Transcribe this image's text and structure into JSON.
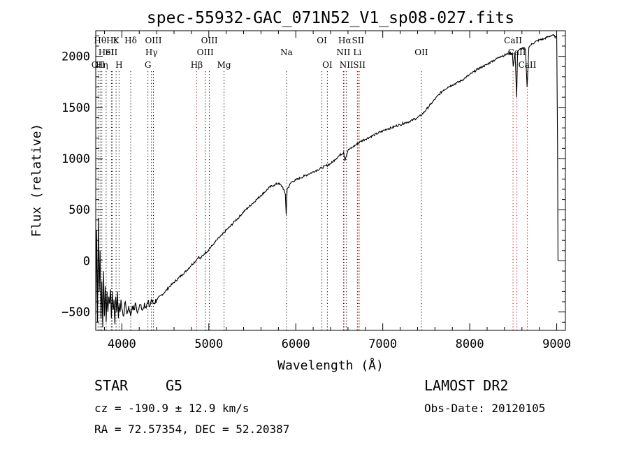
{
  "chart_data": {
    "type": "line",
    "title": "spec-55932-GAC_071N52_V1_sp08-027.fits",
    "xlabel": "Wavelength (Å)",
    "ylabel": "Flux (relative)",
    "xlim": [
      3700,
      9100
    ],
    "ylim": [
      -680,
      2250
    ],
    "x_ticks": [
      4000,
      5000,
      6000,
      7000,
      8000,
      9000
    ],
    "y_ticks": [
      -500,
      0,
      500,
      1000,
      1500,
      2000
    ],
    "grid": false,
    "series": [
      {
        "points": [
          [
            3700,
            -520
          ],
          [
            3710,
            300
          ],
          [
            3720,
            -600
          ],
          [
            3730,
            420
          ],
          [
            3740,
            -300
          ],
          [
            3750,
            100
          ],
          [
            3760,
            -560
          ],
          [
            3770,
            -200
          ],
          [
            3780,
            -650
          ],
          [
            3790,
            -100
          ],
          [
            3800,
            -540
          ],
          [
            3810,
            -250
          ],
          [
            3820,
            -600
          ],
          [
            3830,
            -300
          ],
          [
            3840,
            -500
          ],
          [
            3850,
            -350
          ],
          [
            3860,
            -420
          ],
          [
            3870,
            -280
          ],
          [
            3880,
            -560
          ],
          [
            3890,
            -300
          ],
          [
            3900,
            -480
          ],
          [
            3910,
            -380
          ],
          [
            3920,
            -620
          ],
          [
            3930,
            -350
          ],
          [
            3940,
            -500
          ],
          [
            3950,
            -300
          ],
          [
            3960,
            -560
          ],
          [
            3970,
            -420
          ],
          [
            3980,
            -500
          ],
          [
            3990,
            -380
          ],
          [
            4000,
            -470
          ],
          [
            4020,
            -540
          ],
          [
            4040,
            -400
          ],
          [
            4060,
            -520
          ],
          [
            4080,
            -440
          ],
          [
            4100,
            -540
          ],
          [
            4120,
            -440
          ],
          [
            4140,
            -480
          ],
          [
            4160,
            -420
          ],
          [
            4180,
            -510
          ],
          [
            4200,
            -450
          ],
          [
            4220,
            -430
          ],
          [
            4240,
            -480
          ],
          [
            4260,
            -410
          ],
          [
            4280,
            -460
          ],
          [
            4300,
            -400
          ],
          [
            4320,
            -450
          ],
          [
            4340,
            -380
          ],
          [
            4360,
            -420
          ],
          [
            4400,
            -380
          ],
          [
            4450,
            -340
          ],
          [
            4500,
            -300
          ],
          [
            4550,
            -250
          ],
          [
            4600,
            -210
          ],
          [
            4650,
            -170
          ],
          [
            4700,
            -130
          ],
          [
            4750,
            -90
          ],
          [
            4800,
            -40
          ],
          [
            4850,
            0
          ],
          [
            4880,
            40
          ],
          [
            4900,
            20
          ],
          [
            4950,
            70
          ],
          [
            5000,
            110
          ],
          [
            5050,
            160
          ],
          [
            5100,
            210
          ],
          [
            5150,
            250
          ],
          [
            5200,
            300
          ],
          [
            5250,
            340
          ],
          [
            5300,
            390
          ],
          [
            5350,
            430
          ],
          [
            5400,
            480
          ],
          [
            5450,
            520
          ],
          [
            5500,
            560
          ],
          [
            5550,
            600
          ],
          [
            5600,
            640
          ],
          [
            5650,
            680
          ],
          [
            5700,
            720
          ],
          [
            5750,
            740
          ],
          [
            5800,
            760
          ],
          [
            5850,
            720
          ],
          [
            5880,
            650
          ],
          [
            5890,
            450
          ],
          [
            5900,
            700
          ],
          [
            5950,
            770
          ],
          [
            6000,
            790
          ],
          [
            6050,
            810
          ],
          [
            6100,
            830
          ],
          [
            6150,
            850
          ],
          [
            6200,
            870
          ],
          [
            6250,
            890
          ],
          [
            6300,
            910
          ],
          [
            6350,
            930
          ],
          [
            6400,
            950
          ],
          [
            6450,
            990
          ],
          [
            6500,
            1030
          ],
          [
            6550,
            1060
          ],
          [
            6563,
            980
          ],
          [
            6600,
            1080
          ],
          [
            6650,
            1110
          ],
          [
            6700,
            1140
          ],
          [
            6750,
            1170
          ],
          [
            6800,
            1190
          ],
          [
            6850,
            1210
          ],
          [
            6900,
            1230
          ],
          [
            6950,
            1250
          ],
          [
            7000,
            1270
          ],
          [
            7050,
            1290
          ],
          [
            7100,
            1300
          ],
          [
            7150,
            1320
          ],
          [
            7200,
            1330
          ],
          [
            7250,
            1350
          ],
          [
            7300,
            1360
          ],
          [
            7350,
            1380
          ],
          [
            7400,
            1400
          ],
          [
            7450,
            1430
          ],
          [
            7500,
            1480
          ],
          [
            7550,
            1530
          ],
          [
            7600,
            1580
          ],
          [
            7650,
            1630
          ],
          [
            7700,
            1670
          ],
          [
            7750,
            1700
          ],
          [
            7800,
            1720
          ],
          [
            7850,
            1740
          ],
          [
            7900,
            1760
          ],
          [
            7950,
            1790
          ],
          [
            8000,
            1820
          ],
          [
            8050,
            1850
          ],
          [
            8100,
            1880
          ],
          [
            8150,
            1900
          ],
          [
            8200,
            1920
          ],
          [
            8250,
            1950
          ],
          [
            8300,
            1970
          ],
          [
            8350,
            2000
          ],
          [
            8400,
            2010
          ],
          [
            8450,
            2030
          ],
          [
            8490,
            2030
          ],
          [
            8500,
            1900
          ],
          [
            8520,
            2040
          ],
          [
            8540,
            1600
          ],
          [
            8550,
            2050
          ],
          [
            8600,
            2080
          ],
          [
            8640,
            2070
          ],
          [
            8660,
            1700
          ],
          [
            8680,
            2090
          ],
          [
            8700,
            2110
          ],
          [
            8750,
            2140
          ],
          [
            8800,
            2160
          ],
          [
            8850,
            2170
          ],
          [
            8900,
            2190
          ],
          [
            8950,
            2210
          ],
          [
            9000,
            2180
          ],
          [
            9010,
            1100
          ],
          [
            9015,
            0
          ]
        ]
      }
    ],
    "lines": [
      {
        "wl": 3727,
        "label": "OII",
        "row": 3,
        "color": "#000000"
      },
      {
        "wl": 3750,
        "label": "Hθ",
        "row": 1,
        "color": "#000000"
      },
      {
        "wl": 3770,
        "label": "Hη",
        "row": 3,
        "color": "#000000"
      },
      {
        "wl": 3820,
        "label": "HeI",
        "row": 2,
        "color": "#000000"
      },
      {
        "wl": 3880,
        "label": "SII",
        "row": 2,
        "color": "#000000"
      },
      {
        "wl": 3889,
        "label": "Hε",
        "row": 1,
        "color": "#000000"
      },
      {
        "wl": 3934,
        "label": "K",
        "row": 1,
        "color": "#000000"
      },
      {
        "wl": 3968,
        "label": "H",
        "row": 3,
        "color": "#000000"
      },
      {
        "wl": 4102,
        "label": "Hδ",
        "row": 1,
        "color": "#000000"
      },
      {
        "wl": 4300,
        "label": "G",
        "row": 3,
        "color": "#000000"
      },
      {
        "wl": 4340,
        "label": "Hγ",
        "row": 2,
        "color": "#000000"
      },
      {
        "wl": 4363,
        "label": "OIII",
        "row": 1,
        "color": "#000000"
      },
      {
        "wl": 4861,
        "label": "Hβ",
        "row": 3,
        "color": "#cc0000"
      },
      {
        "wl": 4959,
        "label": "OIII",
        "row": 2,
        "color": "#000000"
      },
      {
        "wl": 5007,
        "label": "OIII",
        "row": 1,
        "color": "#000000"
      },
      {
        "wl": 5175,
        "label": "Mg",
        "row": 3,
        "color": "#000000"
      },
      {
        "wl": 5893,
        "label": "Na",
        "row": 2,
        "color": "#000000"
      },
      {
        "wl": 6300,
        "label": "OI",
        "row": 1,
        "color": "#000000"
      },
      {
        "wl": 6363,
        "label": "OI",
        "row": 3,
        "color": "#000000"
      },
      {
        "wl": 6548,
        "label": "NII",
        "row": 2,
        "color": "#000000"
      },
      {
        "wl": 6563,
        "label": "Hα",
        "row": 1,
        "color": "#cc0000"
      },
      {
        "wl": 6583,
        "label": "NII",
        "row": 3,
        "color": "#000000"
      },
      {
        "wl": 6708,
        "label": "Li",
        "row": 2,
        "color": "#000000"
      },
      {
        "wl": 6716,
        "label": "SII",
        "row": 1,
        "color": "#cc0000"
      },
      {
        "wl": 6731,
        "label": "SII",
        "row": 3,
        "color": "#cc0000"
      },
      {
        "wl": 7444,
        "label": "OII",
        "row": 2,
        "color": "#000000"
      },
      {
        "wl": 8498,
        "label": "CaII",
        "row": 1,
        "color": "#cc0000"
      },
      {
        "wl": 8542,
        "label": "CaII",
        "row": 2,
        "color": "#cc0000"
      },
      {
        "wl": 8662,
        "label": "CaII",
        "row": 3,
        "color": "#cc0000"
      }
    ]
  },
  "info": {
    "class": "STAR",
    "subclass": "G5",
    "survey": "LAMOST DR2",
    "cz": "cz = -190.9 ± 12.9 km/s",
    "obs_date": "Obs-Date: 20120105",
    "coords": "RA =  72.57354, DEC =  52.20387"
  }
}
